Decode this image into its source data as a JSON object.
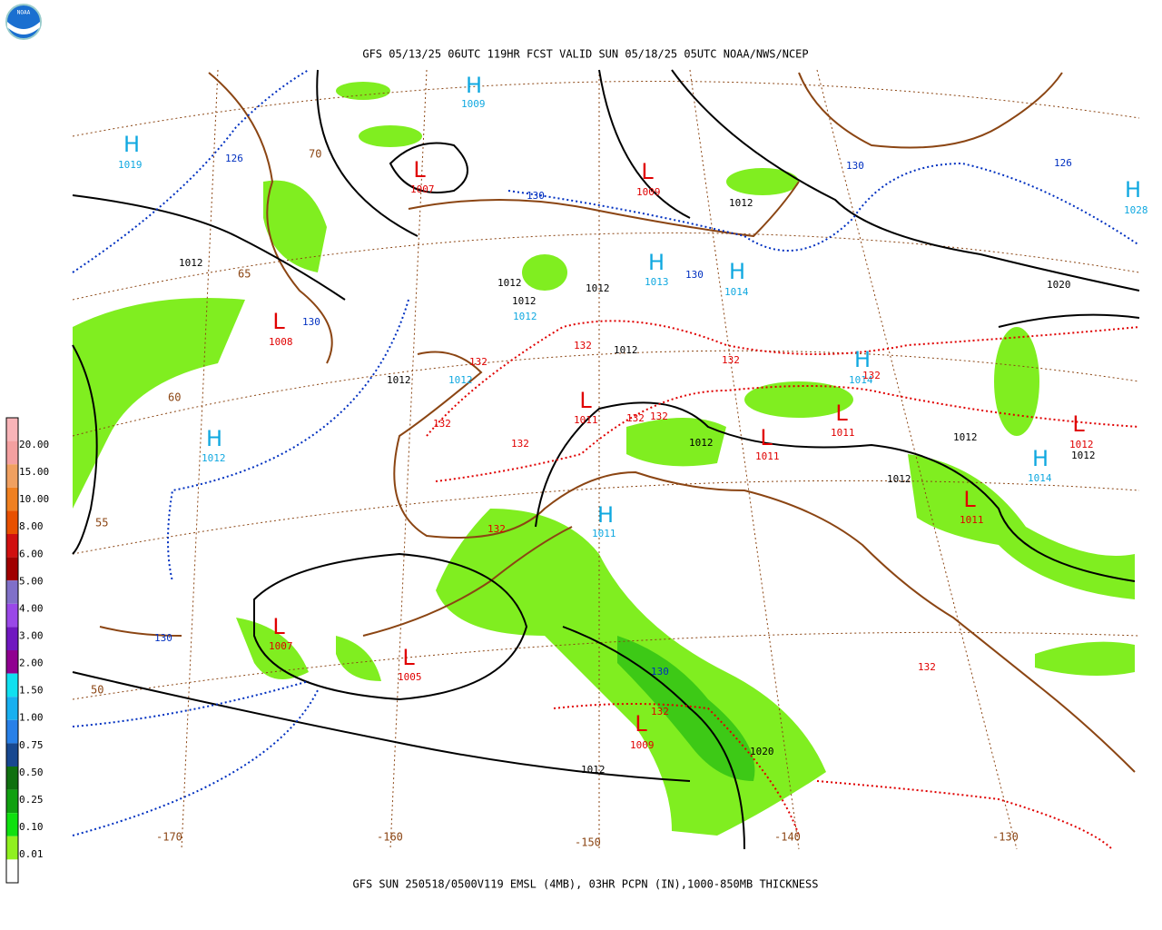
{
  "header": {
    "title": "GFS 05/13/25 06UTC 119HR FCST VALID SUN 05/18/25 05UTC NOAA/NWS/NCEP",
    "logo": "NOAA"
  },
  "footer": "GFS SUN 250518/0500V119 EMSL (4MB), 03HR PCPN (IN),1000-850MB THICKNESS",
  "legend": {
    "labels": [
      "20.00",
      "15.00",
      "10.00",
      "8.00",
      "6.00",
      "5.00",
      "4.00",
      "3.00",
      "2.00",
      "1.50",
      "1.00",
      "0.75",
      "0.50",
      "0.25",
      "0.10",
      "0.01"
    ],
    "colors": [
      "#f8b4b8",
      "#f4a0a0",
      "#f0a060",
      "#f08020",
      "#e85000",
      "#d01010",
      "#a00000",
      "#8070c8",
      "#9a48e8",
      "#7018c0",
      "#900090",
      "#10e0f0",
      "#18b0f0",
      "#2880e8",
      "#184890",
      "#107010",
      "#10a010",
      "#10e010",
      "#90f020",
      "#ffffff"
    ]
  },
  "centers": [
    {
      "letter": "H",
      "value": "1009",
      "kind": "high"
    },
    {
      "letter": "H",
      "value": "1019",
      "kind": "high"
    },
    {
      "letter": "L",
      "value": "1007",
      "kind": "low"
    },
    {
      "letter": "L",
      "value": "1009",
      "kind": "low"
    },
    {
      "letter": "H",
      "value": "1028",
      "kind": "high"
    },
    {
      "letter": "H",
      "value": "1013",
      "kind": "high"
    },
    {
      "letter": "H",
      "value": "1014",
      "kind": "high"
    },
    {
      "letter": "L",
      "value": "1008",
      "kind": "low"
    },
    {
      "letter": "H",
      "value": "1014",
      "kind": "high"
    },
    {
      "letter": "H",
      "value": "1012",
      "kind": "high"
    },
    {
      "letter": "L",
      "value": "1011",
      "kind": "low"
    },
    {
      "letter": "L",
      "value": "1011",
      "kind": "low"
    },
    {
      "letter": "L",
      "value": "1011",
      "kind": "low"
    },
    {
      "letter": "L",
      "value": "1012",
      "kind": "low"
    },
    {
      "letter": "H",
      "value": "1014",
      "kind": "high"
    },
    {
      "letter": "L",
      "value": "1011",
      "kind": "low"
    },
    {
      "letter": "H",
      "value": "1011",
      "kind": "high"
    },
    {
      "letter": "L",
      "value": "1007",
      "kind": "low"
    },
    {
      "letter": "L",
      "value": "1005",
      "kind": "low"
    },
    {
      "letter": "L",
      "value": "1009",
      "kind": "low"
    }
  ],
  "contour_labels": [
    {
      "text": "1012",
      "kind": "isobar"
    },
    {
      "text": "1012",
      "kind": "isobar"
    },
    {
      "text": "1012",
      "kind": "isobar"
    },
    {
      "text": "1012",
      "kind": "isobar"
    },
    {
      "text": "1012",
      "kind": "isobar"
    },
    {
      "text": "1012",
      "kind": "isobar"
    },
    {
      "text": "1012",
      "kind": "isobar"
    },
    {
      "text": "1012",
      "kind": "isobar"
    },
    {
      "text": "1012",
      "kind": "isobar"
    },
    {
      "text": "1012",
      "kind": "isobar"
    },
    {
      "text": "1012",
      "kind": "isobar"
    },
    {
      "text": "1020",
      "kind": "isobar"
    },
    {
      "text": "1020",
      "kind": "isobar"
    },
    {
      "text": "1012",
      "kind": "isobar"
    },
    {
      "text": "126",
      "kind": "thick-low"
    },
    {
      "text": "130",
      "kind": "thick-low"
    },
    {
      "text": "130",
      "kind": "thick-low"
    },
    {
      "text": "126",
      "kind": "thick-low"
    },
    {
      "text": "130",
      "kind": "thick-low"
    },
    {
      "text": "130",
      "kind": "thick-low"
    },
    {
      "text": "130",
      "kind": "thick-low"
    },
    {
      "text": "130",
      "kind": "thick-low"
    },
    {
      "text": "1012",
      "kind": "cyan"
    },
    {
      "text": "1012",
      "kind": "cyan"
    },
    {
      "text": "132",
      "kind": "thick-high"
    },
    {
      "text": "132",
      "kind": "thick-high"
    },
    {
      "text": "132",
      "kind": "thick-high"
    },
    {
      "text": "132",
      "kind": "thick-high"
    },
    {
      "text": "132",
      "kind": "thick-high"
    },
    {
      "text": "132",
      "kind": "thick-high"
    },
    {
      "text": "132",
      "kind": "thick-high"
    },
    {
      "text": "132",
      "kind": "thick-high"
    },
    {
      "text": "132",
      "kind": "thick-high"
    },
    {
      "text": "132",
      "kind": "thick-high"
    },
    {
      "text": "132",
      "kind": "thick-high"
    }
  ],
  "grid_labels": [
    "70",
    "65",
    "60",
    "55",
    "50",
    "-170",
    "-160",
    "-150",
    "-140",
    "-130"
  ]
}
